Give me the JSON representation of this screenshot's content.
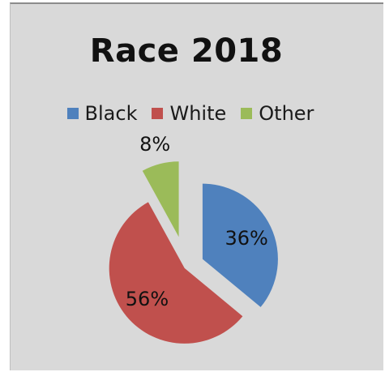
{
  "chart_data": {
    "type": "pie",
    "title": "Race 2018",
    "legend_position": "top",
    "slices": [
      {
        "name": "Black",
        "value": 36,
        "label": "36%",
        "color": "#4f81bd"
      },
      {
        "name": "White",
        "value": 56,
        "label": "56%",
        "color": "#c0504d"
      },
      {
        "name": "Other",
        "value": 8,
        "label": "8%",
        "color": "#9bbb59"
      }
    ],
    "exploded": true
  }
}
